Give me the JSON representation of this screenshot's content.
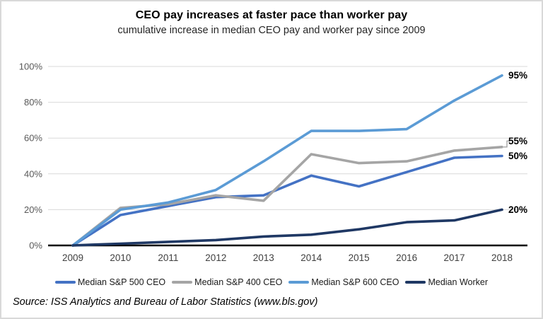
{
  "header": {
    "title": "CEO pay increases at faster pace than worker pay",
    "subtitle": "cumulative increase in median CEO pay and worker pay since 2009"
  },
  "footer": {
    "source": "Source: ISS Analytics and Bureau of Labor Statistics (www.bls.gov)"
  },
  "colors": {
    "gridline": "#D9D9D9",
    "axis_line": "#000000",
    "y_tick_label": "#595959",
    "x_tick_label": "#404040",
    "end_label": "#000000",
    "frame_border": "#D9D9D9",
    "leader_line": "#A5A5A5"
  },
  "chart_data": {
    "type": "line",
    "title": "CEO pay increases at faster pace than worker pay",
    "subtitle": "cumulative increase in median CEO pay and worker pay since 2009",
    "x": [
      "2009",
      "2010",
      "2011",
      "2012",
      "2013",
      "2014",
      "2015",
      "2016",
      "2017",
      "2018"
    ],
    "y_ticks": [
      "0%",
      "20%",
      "40%",
      "60%",
      "80%",
      "100%"
    ],
    "ylim": [
      0,
      100
    ],
    "xlabel": "",
    "ylabel": "",
    "grid": true,
    "legend_position": "bottom",
    "series": [
      {
        "name": "Median S&P 500 CEO",
        "color": "#4472C4",
        "values": [
          0,
          17,
          22,
          27,
          28,
          39,
          33,
          41,
          49,
          50
        ],
        "end_label": "50%",
        "end_label_dy": 0
      },
      {
        "name": "Median S&P 400 CEO",
        "color": "#A5A5A5",
        "values": [
          0,
          21,
          23,
          28,
          25,
          51,
          46,
          47,
          53,
          55
        ],
        "end_label": "55%",
        "end_label_dy": -8.5
      },
      {
        "name": "Median S&P 600 CEO",
        "color": "#5B9BD5",
        "values": [
          0,
          20,
          24,
          31,
          47,
          64,
          64,
          65,
          81,
          95
        ],
        "end_label": "95%",
        "end_label_dy": 0
      },
      {
        "name": "Median Worker",
        "color": "#1F3864",
        "values": [
          0,
          1,
          2,
          3,
          5,
          6,
          9,
          13,
          14,
          20
        ],
        "end_label": "20%",
        "end_label_dy": 0
      }
    ]
  }
}
